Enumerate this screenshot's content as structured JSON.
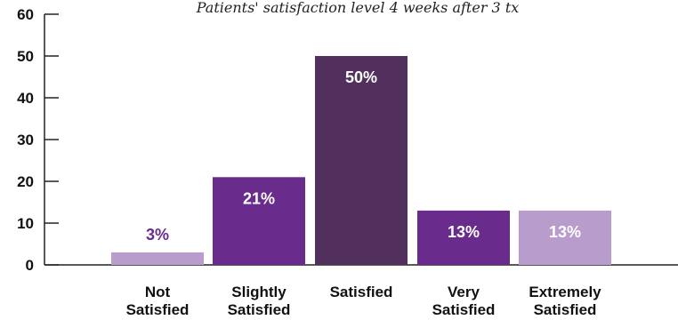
{
  "chart_data": {
    "type": "bar",
    "title": "Patients' satisfaction level 4 weeks after 3 tx",
    "categories": [
      [
        "Not",
        "Satisfied"
      ],
      [
        "Slightly",
        "Satisfied"
      ],
      [
        "Satisfied"
      ],
      [
        "Very",
        "Satisfied"
      ],
      [
        "Extremely",
        "Satisfied"
      ]
    ],
    "values": [
      3,
      21,
      50,
      13,
      13
    ],
    "data_labels": [
      "3%",
      "21%",
      "50%",
      "13%",
      "13%"
    ],
    "bar_colors": [
      "#b89ccc",
      "#6a2c8c",
      "#52305e",
      "#6a2c8c",
      "#b89ccc"
    ],
    "label_colors": [
      "#6a2c8c",
      "#ffffff",
      "#ffffff",
      "#ffffff",
      "#ffffff"
    ],
    "label_inside": [
      false,
      true,
      true,
      true,
      true
    ],
    "ylim": [
      0,
      60
    ],
    "yticks": [
      0,
      10,
      20,
      30,
      40,
      50,
      60
    ],
    "xlabel": "",
    "ylabel": "",
    "grid": false,
    "legend": "none"
  }
}
